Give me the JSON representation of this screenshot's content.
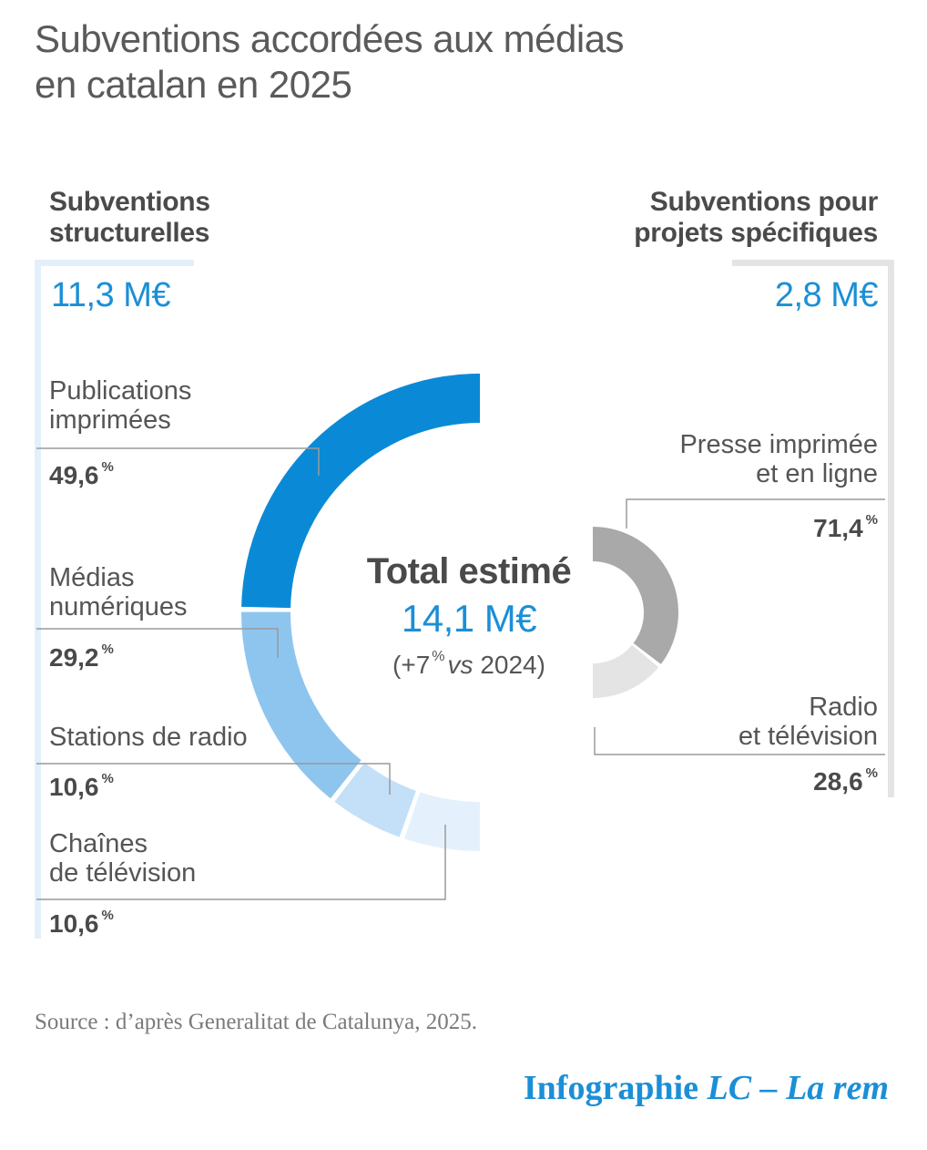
{
  "title_line1": "Subventions accordées aux médias",
  "title_line2": "en catalan en 2025",
  "colors": {
    "accent": "#1b8fd6",
    "structural": [
      "#0a8ad6",
      "#8ec5ef",
      "#c3e0f8",
      "#e4f1fc"
    ],
    "projects": [
      "#a9a9a9",
      "#e4e4e4"
    ]
  },
  "left": {
    "heading_line1": "Subventions",
    "heading_line2": "structurelles",
    "amount": "11,3 M€"
  },
  "right": {
    "heading_line1": "Subventions pour",
    "heading_line2": "projets spécifiques",
    "amount": "2,8 M€"
  },
  "center": {
    "title": "Total estimé",
    "total": "14,1 M€",
    "change_prefix": "(+7",
    "change_unit": "%",
    "change_vs": "vs",
    "change_year": "2024)"
  },
  "chart_data": [
    {
      "type": "pie",
      "title": "Subventions structurelles",
      "total": "11,3 M€",
      "categories": [
        "Publications imprimées",
        "Médias numériques",
        "Stations de radio",
        "Chaînes de télévision"
      ],
      "values": [
        49.6,
        29.2,
        10.6,
        10.6
      ],
      "labels_line1": [
        "Publications",
        "Médias",
        "Stations de radio",
        "Chaînes"
      ],
      "labels_line2": [
        "imprimées",
        "numériques",
        "",
        "de télévision"
      ],
      "value_text": [
        "49,6",
        "29,2",
        "10,6",
        "10,6"
      ],
      "unit": "%"
    },
    {
      "type": "pie",
      "title": "Subventions pour projets spécifiques",
      "total": "2,8 M€",
      "categories": [
        "Presse imprimée et en ligne",
        "Radio et télévision"
      ],
      "values": [
        71.4,
        28.6
      ],
      "labels_line1": [
        "Presse imprimée",
        "Radio"
      ],
      "labels_line2": [
        "et en ligne",
        "et télévision"
      ],
      "value_text": [
        "71,4",
        "28,6"
      ],
      "unit": "%"
    }
  ],
  "source": "Source : d’après Generalitat de Catalunya, 2025.",
  "credit_prefix": "Infographie",
  "credit_suffix": "LC – La rem"
}
